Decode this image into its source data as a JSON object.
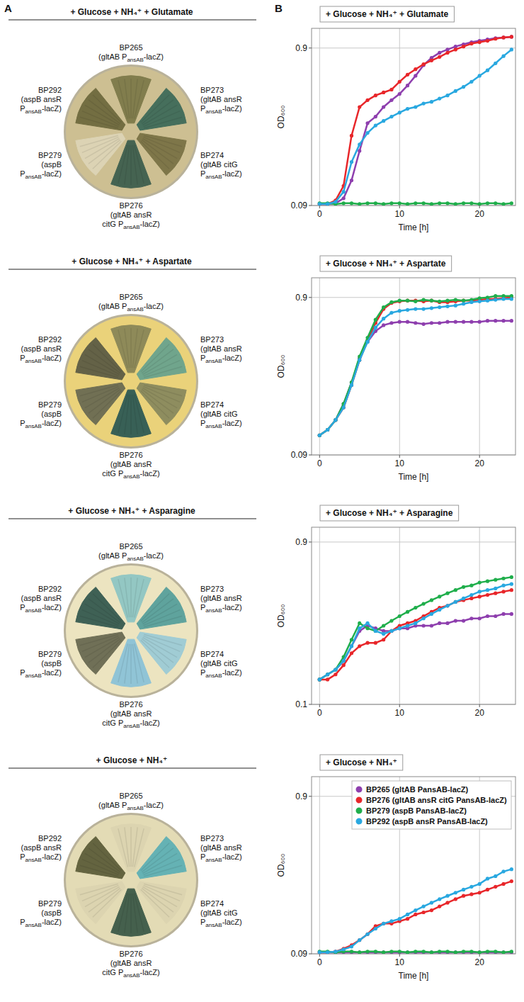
{
  "panel_labels": [
    "A",
    "B"
  ],
  "plates": [
    {
      "title": "+ Glucose + NH₄⁺ + Glutamate",
      "color": "#cdbf92",
      "strains": [
        {
          "name": "BP265",
          "genotype": [
            [
              "(gltAB P",
              "ansAB",
              "-lacZ)"
            ]
          ],
          "color": "#7d7a4a"
        },
        {
          "name": "BP273",
          "genotype": [
            [
              "(gltAB ansR"
            ],
            [
              "P",
              "ansAB",
              "-lacZ)"
            ]
          ],
          "color": "#3f6b5a"
        },
        {
          "name": "BP274",
          "genotype": [
            [
              "(gltAB citG"
            ],
            [
              "P",
              "ansAB",
              "-lacZ)"
            ]
          ],
          "color": "#7a7346"
        },
        {
          "name": "BP276",
          "genotype": [
            [
              "(gltAB ansR"
            ],
            [
              "citG P",
              "ansAB",
              "-lacZ)"
            ]
          ],
          "color": "#3e5f4e"
        },
        {
          "name": "BP279",
          "genotype": [
            [
              "(aspB"
            ],
            [
              "P",
              "ansAB",
              "-lacZ)"
            ]
          ],
          "color": "#ddd5b6"
        },
        {
          "name": "BP292",
          "genotype": [
            [
              "(aspB ansR"
            ],
            [
              "P",
              "ansAB",
              "-lacZ)"
            ]
          ],
          "color": "#6f6a3e"
        }
      ]
    },
    {
      "title": "+ Glucose + NH₄⁺ + Aspartate",
      "color": "#ead27a",
      "strains": [
        {
          "name": "BP265",
          "genotype": [
            [
              "(gltAB P",
              "ansAB",
              "-lacZ)"
            ]
          ],
          "color": "#8a8758"
        },
        {
          "name": "BP273",
          "genotype": [
            [
              "(gltAB ansR"
            ],
            [
              "P",
              "ansAB",
              "-lacZ)"
            ]
          ],
          "color": "#6aa38e"
        },
        {
          "name": "BP274",
          "genotype": [
            [
              "(gltAB citG"
            ],
            [
              "P",
              "ansAB",
              "-lacZ)"
            ]
          ],
          "color": "#8a8a5e"
        },
        {
          "name": "BP276",
          "genotype": [
            [
              "(gltAB ansR"
            ],
            [
              "citG P",
              "ansAB",
              "-lacZ)"
            ]
          ],
          "color": "#2f5a55"
        },
        {
          "name": "BP279",
          "genotype": [
            [
              "(aspB"
            ],
            [
              "P",
              "ansAB",
              "-lacZ)"
            ]
          ],
          "color": "#6b6b52"
        },
        {
          "name": "BP292",
          "genotype": [
            [
              "(aspB ansR"
            ],
            [
              "P",
              "ansAB",
              "-lacZ)"
            ]
          ],
          "color": "#5d5d45"
        }
      ]
    },
    {
      "title": "+ Glucose + NH₄⁺ + Asparagine",
      "color": "#ece4c0",
      "strains": [
        {
          "name": "BP265",
          "genotype": [
            [
              "(gltAB P",
              "ansAB",
              "-lacZ)"
            ]
          ],
          "color": "#8fc6c4"
        },
        {
          "name": "BP273",
          "genotype": [
            [
              "(gltAB ansR"
            ],
            [
              "P",
              "ansAB",
              "-lacZ)"
            ]
          ],
          "color": "#58a09c"
        },
        {
          "name": "BP274",
          "genotype": [
            [
              "(gltAB citG"
            ],
            [
              "P",
              "ansAB",
              "-lacZ)"
            ]
          ],
          "color": "#9ccbd6"
        },
        {
          "name": "BP276",
          "genotype": [
            [
              "(gltAB ansR"
            ],
            [
              "citG P",
              "ansAB",
              "-lacZ)"
            ]
          ],
          "color": "#8cc3d8"
        },
        {
          "name": "BP279",
          "genotype": [
            [
              "(aspB"
            ],
            [
              "P",
              "ansAB",
              "-lacZ)"
            ]
          ],
          "color": "#6a6a52"
        },
        {
          "name": "BP292",
          "genotype": [
            [
              "(aspB ansR"
            ],
            [
              "P",
              "ansAB",
              "-lacZ)"
            ]
          ],
          "color": "#365a50"
        }
      ]
    },
    {
      "title": "+ Glucose + NH₄⁺",
      "color": "#e3dbb5",
      "strains": [
        {
          "name": "BP265",
          "genotype": [
            [
              "(gltAB P",
              "ansAB",
              "-lacZ)"
            ]
          ],
          "color": "#dcd4b0"
        },
        {
          "name": "BP273",
          "genotype": [
            [
              "(gltAB ansR"
            ],
            [
              "P",
              "ansAB",
              "-lacZ)"
            ]
          ],
          "color": "#5fb0b4"
        },
        {
          "name": "BP274",
          "genotype": [
            [
              "(gltAB citG"
            ],
            [
              "P",
              "ansAB",
              "-lacZ)"
            ]
          ],
          "color": "#dcd4b0"
        },
        {
          "name": "BP276",
          "genotype": [
            [
              "(gltAB ansR"
            ],
            [
              "citG P",
              "ansAB",
              "-lacZ)"
            ]
          ],
          "color": "#3d5a48"
        },
        {
          "name": "BP279",
          "genotype": [
            [
              "(aspB"
            ],
            [
              "P",
              "ansAB",
              "-lacZ)"
            ]
          ],
          "color": "#dcd4b0"
        },
        {
          "name": "BP292",
          "genotype": [
            [
              "(aspB ansR"
            ],
            [
              "P",
              "ansAB",
              "-lacZ)"
            ]
          ],
          "color": "#5e5e3a"
        }
      ]
    }
  ],
  "chart_data": [
    {
      "type": "line",
      "title": "+ Glucose + NH₄⁺ + Glutamate",
      "x_label": "Time [h]",
      "y_label": "OD₆₀₀",
      "log": "y",
      "grid": true,
      "marker": "circle",
      "xlim": [
        -1,
        24.5
      ],
      "xticks": [
        0,
        10,
        20
      ],
      "ylim": [
        0.09,
        1.2
      ],
      "yticks": [
        0.09,
        0.9
      ],
      "x": [
        0,
        1,
        2,
        3,
        4,
        5,
        6,
        7,
        8,
        9,
        10,
        11,
        12,
        13,
        14,
        15,
        16,
        17,
        18,
        19,
        20,
        21,
        22,
        23,
        24
      ],
      "series": [
        {
          "color": "#8e3fae",
          "values": [
            0.092,
            0.092,
            0.093,
            0.1,
            0.13,
            0.2,
            0.3,
            0.33,
            0.38,
            0.42,
            0.46,
            0.52,
            0.6,
            0.7,
            0.78,
            0.84,
            0.88,
            0.92,
            0.95,
            0.98,
            1.0,
            1.02,
            1.04,
            1.05,
            1.06
          ]
        },
        {
          "color": "#e8262a",
          "values": [
            0.092,
            0.092,
            0.097,
            0.12,
            0.25,
            0.38,
            0.42,
            0.45,
            0.47,
            0.49,
            0.55,
            0.61,
            0.66,
            0.71,
            0.75,
            0.79,
            0.84,
            0.88,
            0.92,
            0.96,
            0.98,
            1.0,
            1.03,
            1.05,
            1.06
          ]
        },
        {
          "color": "#1fae4b",
          "values": [
            0.093,
            0.093,
            0.092,
            0.093,
            0.093,
            0.092,
            0.093,
            0.093,
            0.092,
            0.093,
            0.093,
            0.092,
            0.093,
            0.093,
            0.092,
            0.093,
            0.093,
            0.092,
            0.093,
            0.093,
            0.092,
            0.093,
            0.093,
            0.092,
            0.093
          ]
        },
        {
          "color": "#29a8e0",
          "values": [
            0.092,
            0.092,
            0.095,
            0.11,
            0.17,
            0.22,
            0.26,
            0.29,
            0.31,
            0.33,
            0.35,
            0.37,
            0.38,
            0.4,
            0.41,
            0.43,
            0.45,
            0.48,
            0.51,
            0.55,
            0.6,
            0.65,
            0.72,
            0.8,
            0.88
          ]
        }
      ]
    },
    {
      "type": "line",
      "title": "+ Glucose + NH₄⁺ + Aspartate",
      "x_label": "Time [h]",
      "y_label": "OD₆₀₀",
      "log": "y",
      "grid": true,
      "marker": "circle",
      "xlim": [
        -1,
        24.5
      ],
      "xticks": [
        0,
        10,
        20
      ],
      "ylim": [
        0.09,
        1.2
      ],
      "yticks": [
        0.09,
        0.9
      ],
      "x": [
        0,
        1,
        2,
        3,
        4,
        5,
        6,
        7,
        8,
        9,
        10,
        11,
        12,
        13,
        14,
        15,
        16,
        17,
        18,
        19,
        20,
        21,
        22,
        23,
        24
      ],
      "series": [
        {
          "color": "#8e3fae",
          "values": [
            0.12,
            0.13,
            0.15,
            0.19,
            0.26,
            0.37,
            0.47,
            0.55,
            0.6,
            0.62,
            0.63,
            0.63,
            0.62,
            0.61,
            0.62,
            0.62,
            0.63,
            0.63,
            0.63,
            0.63,
            0.63,
            0.64,
            0.64,
            0.64,
            0.64
          ]
        },
        {
          "color": "#e8262a",
          "values": [
            0.12,
            0.13,
            0.15,
            0.18,
            0.25,
            0.36,
            0.48,
            0.62,
            0.76,
            0.83,
            0.85,
            0.86,
            0.86,
            0.85,
            0.86,
            0.84,
            0.84,
            0.85,
            0.86,
            0.86,
            0.87,
            0.88,
            0.88,
            0.89,
            0.9
          ]
        },
        {
          "color": "#1fae4b",
          "values": [
            0.12,
            0.13,
            0.15,
            0.19,
            0.26,
            0.38,
            0.5,
            0.65,
            0.78,
            0.84,
            0.86,
            0.86,
            0.85,
            0.87,
            0.86,
            0.85,
            0.86,
            0.87,
            0.86,
            0.87,
            0.89,
            0.9,
            0.92,
            0.92,
            0.92
          ]
        },
        {
          "color": "#29a8e0",
          "values": [
            0.12,
            0.13,
            0.15,
            0.18,
            0.25,
            0.36,
            0.47,
            0.58,
            0.66,
            0.72,
            0.74,
            0.75,
            0.76,
            0.76,
            0.77,
            0.78,
            0.79,
            0.8,
            0.82,
            0.84,
            0.85,
            0.86,
            0.87,
            0.88,
            0.88
          ]
        }
      ]
    },
    {
      "type": "line",
      "title": "+ Glucose + NH₄⁺ + Asparagine",
      "y_label": "OD₆₀₀",
      "log": "y",
      "grid": true,
      "marker": "circle",
      "xlim": [
        -1,
        24.5
      ],
      "xticks": [
        0,
        10,
        20
      ],
      "ylim": [
        0.1,
        1.1
      ],
      "yticks": [
        0.1,
        0.9
      ],
      "x": [
        0,
        1,
        2,
        3,
        4,
        5,
        6,
        7,
        8,
        9,
        10,
        11,
        12,
        13,
        14,
        15,
        16,
        17,
        18,
        19,
        20,
        21,
        22,
        23,
        24
      ],
      "series": [
        {
          "color": "#8e3fae",
          "values": [
            0.14,
            0.15,
            0.16,
            0.18,
            0.22,
            0.27,
            0.29,
            0.28,
            0.27,
            0.27,
            0.28,
            0.28,
            0.29,
            0.29,
            0.29,
            0.3,
            0.3,
            0.31,
            0.31,
            0.32,
            0.32,
            0.33,
            0.33,
            0.34,
            0.34
          ]
        },
        {
          "color": "#e8262a",
          "values": [
            0.14,
            0.14,
            0.15,
            0.17,
            0.2,
            0.22,
            0.23,
            0.23,
            0.24,
            0.27,
            0.29,
            0.3,
            0.31,
            0.33,
            0.35,
            0.37,
            0.38,
            0.4,
            0.41,
            0.42,
            0.43,
            0.44,
            0.45,
            0.46,
            0.47
          ]
        },
        {
          "color": "#1fae4b",
          "values": [
            0.14,
            0.15,
            0.16,
            0.19,
            0.24,
            0.3,
            0.28,
            0.27,
            0.29,
            0.31,
            0.33,
            0.35,
            0.37,
            0.39,
            0.41,
            0.43,
            0.45,
            0.47,
            0.49,
            0.5,
            0.52,
            0.53,
            0.54,
            0.55,
            0.56
          ]
        },
        {
          "color": "#29a8e0",
          "values": [
            0.14,
            0.15,
            0.16,
            0.18,
            0.22,
            0.28,
            0.3,
            0.27,
            0.26,
            0.27,
            0.28,
            0.29,
            0.3,
            0.32,
            0.34,
            0.36,
            0.38,
            0.4,
            0.42,
            0.44,
            0.46,
            0.47,
            0.48,
            0.5,
            0.51
          ]
        }
      ]
    },
    {
      "type": "line",
      "title": "+ Glucose + NH₄⁺",
      "x_label": "Time [h]",
      "y_label": "OD₆₀₀",
      "log": "y",
      "grid": true,
      "marker": "circle",
      "legend": "upper right",
      "xlim": [
        -1,
        24.5
      ],
      "xticks": [
        0,
        10,
        20
      ],
      "ylim": [
        0.09,
        1.2
      ],
      "yticks": [
        0.09,
        0.9
      ],
      "x": [
        0,
        1,
        2,
        3,
        4,
        5,
        6,
        7,
        8,
        9,
        10,
        11,
        12,
        13,
        14,
        15,
        16,
        17,
        18,
        19,
        20,
        21,
        22,
        23,
        24
      ],
      "series": [
        {
          "name": "BP265 (gltAB PansAB-lacZ)",
          "color": "#8e3fae",
          "values": [
            0.092,
            0.092,
            0.092,
            0.092,
            0.092,
            0.092,
            0.092,
            0.092,
            0.092,
            0.092,
            0.092,
            0.092,
            0.092,
            0.092,
            0.092,
            0.092,
            0.092,
            0.092,
            0.092,
            0.092,
            0.092,
            0.092,
            0.092,
            0.092,
            0.092
          ]
        },
        {
          "name": "BP276 (gltAB ansR citG PansAB-lacZ)",
          "color": "#e8262a",
          "values": [
            0.092,
            0.092,
            0.093,
            0.097,
            0.102,
            0.11,
            0.12,
            0.135,
            0.14,
            0.14,
            0.145,
            0.15,
            0.16,
            0.165,
            0.17,
            0.18,
            0.19,
            0.2,
            0.21,
            0.215,
            0.22,
            0.23,
            0.24,
            0.25,
            0.26
          ]
        },
        {
          "name": "BP279 (aspB PansAB-lacZ)",
          "color": "#1fae4b",
          "values": [
            0.093,
            0.093,
            0.092,
            0.093,
            0.093,
            0.092,
            0.093,
            0.093,
            0.092,
            0.093,
            0.093,
            0.092,
            0.093,
            0.093,
            0.092,
            0.093,
            0.093,
            0.092,
            0.093,
            0.093,
            0.092,
            0.093,
            0.093,
            0.092,
            0.093
          ]
        },
        {
          "name": "BP292 (aspB ansR PansAB-lacZ)",
          "color": "#29a8e0",
          "values": [
            0.092,
            0.092,
            0.093,
            0.096,
            0.1,
            0.11,
            0.12,
            0.13,
            0.14,
            0.145,
            0.15,
            0.16,
            0.17,
            0.18,
            0.19,
            0.2,
            0.21,
            0.22,
            0.23,
            0.24,
            0.25,
            0.27,
            0.28,
            0.3,
            0.31
          ]
        }
      ]
    }
  ]
}
